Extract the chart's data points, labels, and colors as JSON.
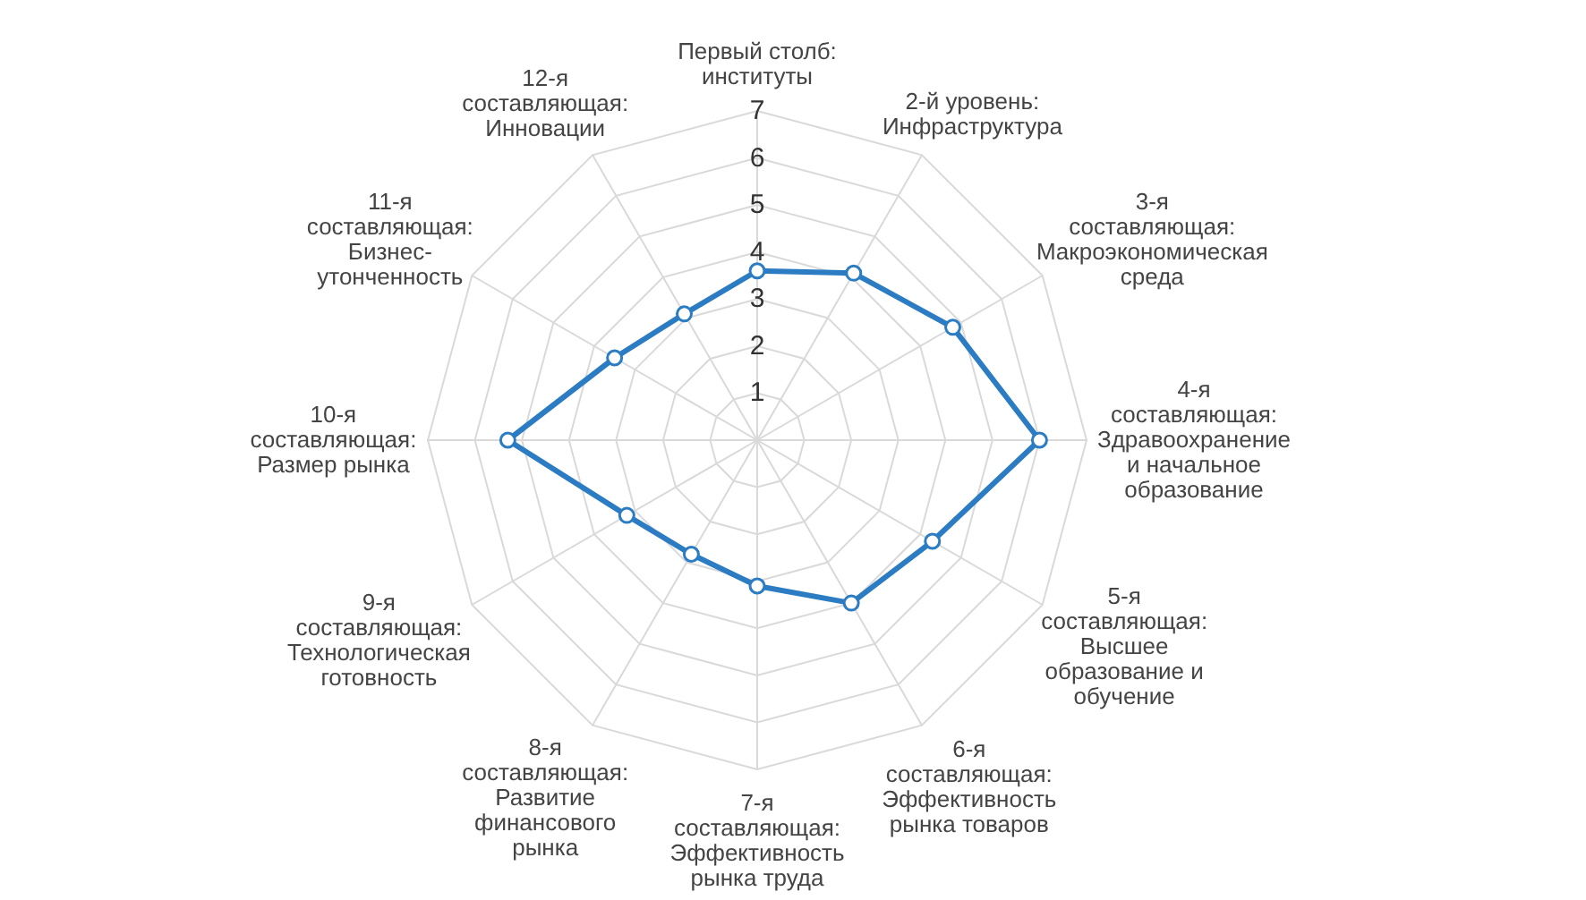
{
  "chart_data": {
    "type": "radar",
    "categories": [
      "Первый столб:\nинституты",
      "2-й уровень:\nИнфраструктура",
      "3-я\nсоставляющая:\nМакроэкономическая\nсреда",
      "4-я\nсоставляющая:\nЗдравоохранение\nи начальное\nобразование",
      "5-я\nсоставляющая:\nВысшее\nобразование и\nобучение",
      "6-я\nсоставляющая:\nЭффективность\nрынка товаров",
      "7-я\nсоставляющая:\nЭффективность\nрынка труда",
      "8-я\nсоставляющая:\nРазвитие\nфинансового\nрынка",
      "9-я\nсоставляющая:\nТехнологическая\nготовность",
      "10-я\nсоставляющая:\nРазмер рынка",
      "11-я\nсоставляющая:\nБизнес-\nутонченность",
      "12-я\nсоставляющая:\nИнновации"
    ],
    "series": [
      {
        "color": "#2b7cc3",
        "values": [
          3.6,
          4.1,
          4.8,
          6.0,
          4.3,
          4.0,
          3.1,
          2.8,
          3.2,
          5.3,
          3.5,
          3.1
        ]
      }
    ],
    "ylim": [
      0,
      7
    ],
    "yticks": [
      1,
      2,
      3,
      4,
      5,
      6,
      7
    ],
    "grid": true,
    "marker": "circle",
    "line_style": "solid"
  }
}
